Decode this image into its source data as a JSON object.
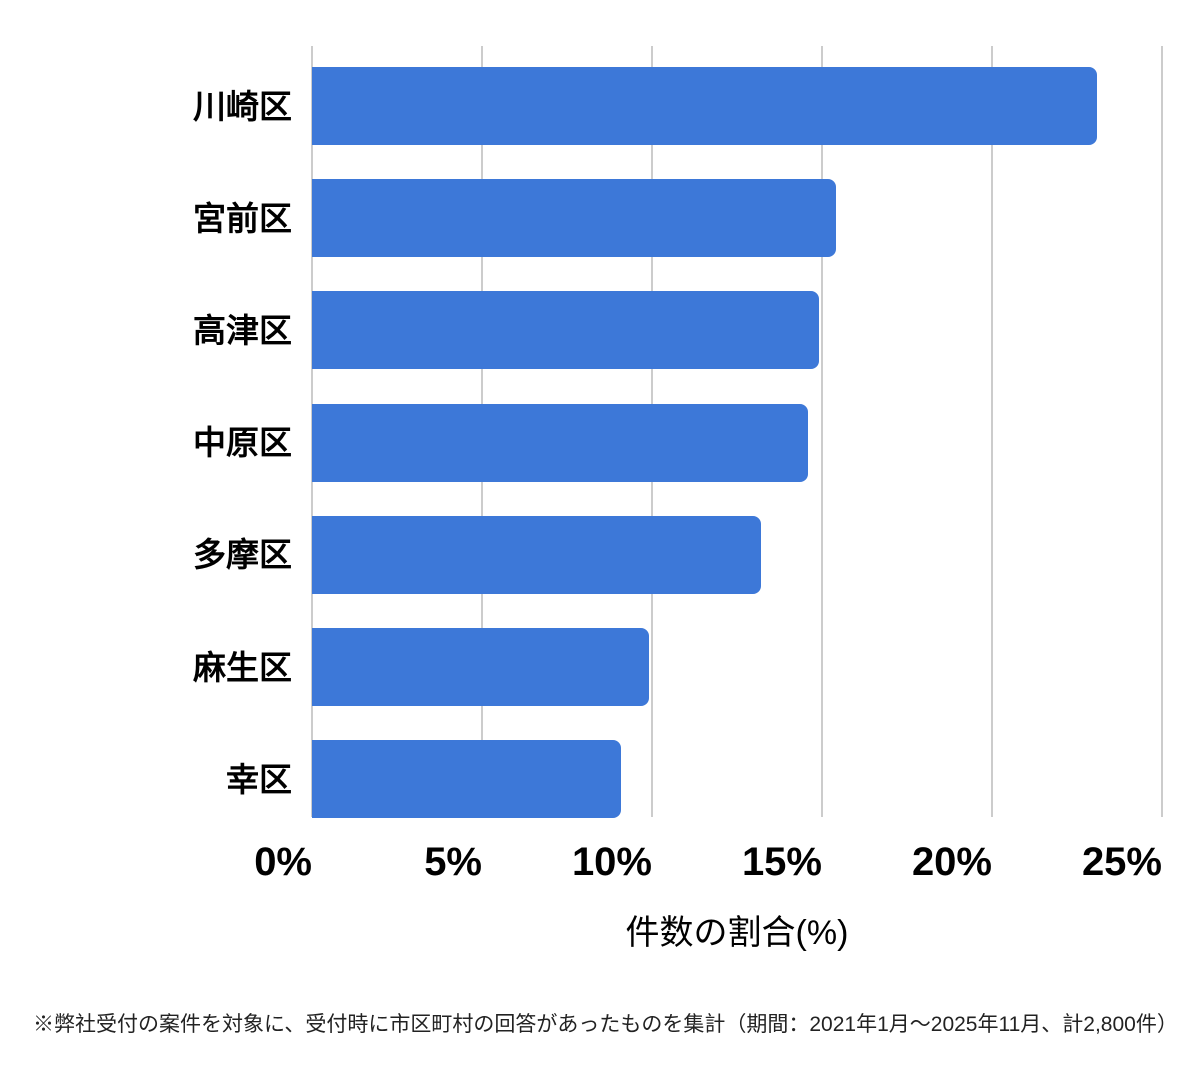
{
  "chart_data": {
    "type": "bar",
    "orientation": "horizontal",
    "title": "",
    "categories": [
      "川崎区",
      "宮前区",
      "高津区",
      "中原区",
      "多摩区",
      "麻生区",
      "幸区"
    ],
    "values": [
      23.1,
      15.4,
      14.9,
      14.6,
      13.2,
      9.9,
      9.1
    ],
    "unit": "%",
    "xlabel": "件数の割合(%)",
    "ylabel": "",
    "xlim": [
      0,
      25
    ],
    "xticks": [
      {
        "value": 0,
        "label": "0%"
      },
      {
        "value": 5,
        "label": "5%"
      },
      {
        "value": 10,
        "label": "10%"
      },
      {
        "value": 15,
        "label": "15%"
      },
      {
        "value": 20,
        "label": "20%"
      },
      {
        "value": 25,
        "label": "25%"
      }
    ],
    "grid": "vertical-only",
    "legend": "none",
    "bar_color": "#3d78d8",
    "gridline_color": "#cccccc"
  },
  "footer": {
    "note": "※弊社受付の案件を対象に、受付時に市区町村の回答があったものを集計（期間：2021年1月〜2025年11月、計2,800件）"
  }
}
